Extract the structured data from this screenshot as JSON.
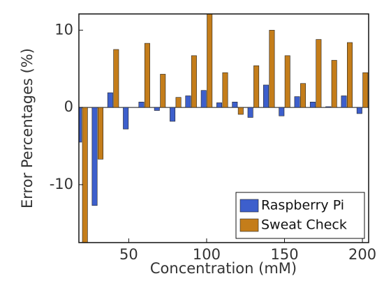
{
  "chart_data": {
    "type": "bar",
    "x_label": "Concentration (mM)",
    "y_label": "Error Percentages (%)",
    "x": [
      20,
      30,
      40,
      50,
      60,
      70,
      80,
      90,
      100,
      110,
      120,
      130,
      140,
      150,
      160,
      170,
      180,
      190,
      200
    ],
    "series": [
      {
        "name": "Raspberry Pi",
        "color": "#3d5fcc",
        "values": [
          -4.5,
          -12.7,
          1.9,
          -2.8,
          0.7,
          -0.4,
          -1.8,
          1.5,
          2.2,
          0.6,
          0.7,
          -1.3,
          2.9,
          -1.1,
          1.4,
          0.7,
          0.1,
          1.5,
          -0.8
        ]
      },
      {
        "name": "Sweat Check",
        "color": "#c47d1a",
        "values": [
          -18,
          -6.7,
          7.5,
          0,
          8.3,
          4.3,
          1.3,
          6.7,
          12.1,
          4.5,
          -0.9,
          5.4,
          10,
          6.7,
          3.1,
          8.8,
          6.1,
          8.4,
          4.5
        ]
      }
    ],
    "xlim": [
      18,
      204
    ],
    "xticks": [
      50,
      100,
      150,
      200
    ],
    "ylim": [
      -17.5,
      12.1
    ],
    "yticks": [
      -10,
      0,
      10
    ],
    "legend": "lower right"
  }
}
